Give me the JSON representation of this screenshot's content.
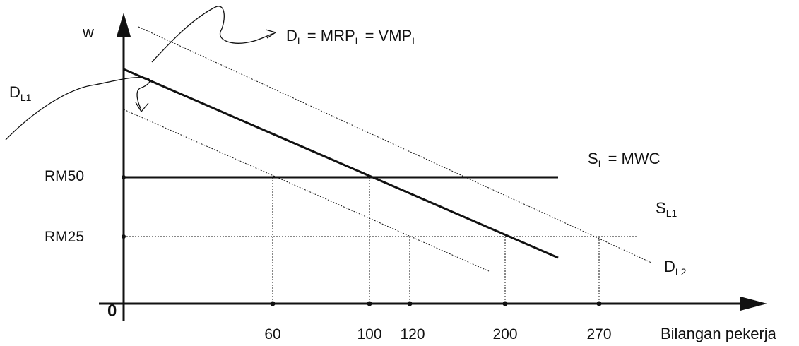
{
  "axes": {
    "y_label": "w",
    "x_label": "Bilangan pekerja",
    "origin": "0",
    "y_ticks": [
      {
        "label": "RM50",
        "value": 50
      },
      {
        "label": "RM25",
        "value": 25
      }
    ],
    "x_ticks": [
      "60",
      "100",
      "120",
      "200",
      "270"
    ]
  },
  "curve_labels": {
    "dl": {
      "base": "D",
      "sub": "L",
      "eq1": " = MRP",
      "sub1": "L",
      "eq2": " = VMP",
      "sub2": "L"
    },
    "dl1": {
      "base": "D",
      "sub": "L1"
    },
    "dl2": {
      "base": "D",
      "sub": "L2"
    },
    "sl": {
      "base": "S",
      "sub": "L",
      "rest": " = MWC"
    },
    "sl1": {
      "base": "S",
      "sub": "L1"
    }
  },
  "colors": {
    "ink": "#111111"
  }
}
